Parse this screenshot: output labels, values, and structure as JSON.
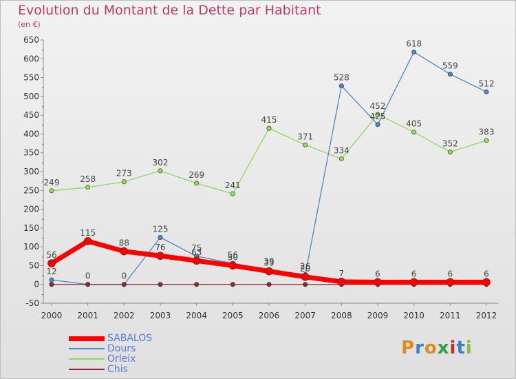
{
  "header": {
    "title": "Evolution du Montant de la Dette par Habitant",
    "unit": "(en €)"
  },
  "logo": {
    "text": "Proxiti",
    "colors": [
      "#e08a1e",
      "#3a7fd0",
      "#e08a1e",
      "#2e9e48",
      "#cc2b2b",
      "#3a7fd0",
      "#7ec43a"
    ]
  },
  "chart_data": {
    "type": "line",
    "x": [
      "2000",
      "2001",
      "2002",
      "2003",
      "2004",
      "2005",
      "2006",
      "2007",
      "2008",
      "2009",
      "2010",
      "2011",
      "2012"
    ],
    "ylim": [
      -50,
      650
    ],
    "yticks": [
      -50,
      0,
      50,
      100,
      150,
      200,
      250,
      300,
      350,
      400,
      450,
      500,
      550,
      600,
      650
    ],
    "grid": false,
    "legend_position": "bottom-left",
    "series": [
      {
        "name": "SABALOS",
        "color": "#ff0000",
        "values": [
          56,
          115,
          88,
          76,
          63,
          50,
          35,
          20,
          7,
          6,
          6,
          6,
          6
        ]
      },
      {
        "name": "Dours",
        "color": "#4f86c6",
        "values": [
          12,
          0,
          0,
          125,
          75,
          56,
          39,
          26,
          528,
          425,
          618,
          559,
          512
        ]
      },
      {
        "name": "Orleix",
        "color": "#8ed85a",
        "values": [
          249,
          258,
          273,
          302,
          269,
          241,
          415,
          371,
          334,
          452,
          405,
          352,
          383
        ]
      },
      {
        "name": "Chis",
        "color": "#8b2a36",
        "values": [
          0,
          0,
          0,
          0,
          0,
          0,
          0,
          0,
          0,
          0,
          0,
          0,
          0
        ]
      }
    ]
  }
}
